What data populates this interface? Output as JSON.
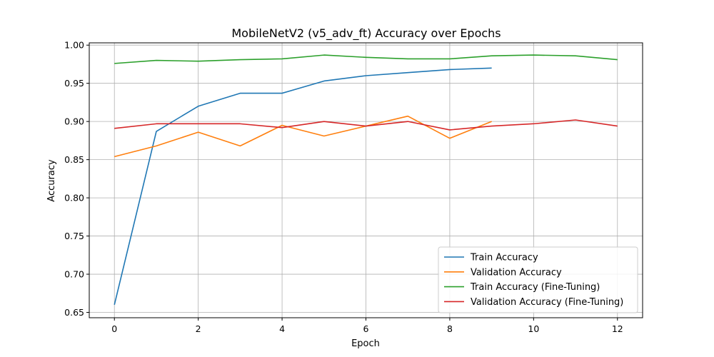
{
  "chart_data": {
    "type": "line",
    "title": "MobileNetV2 (v5_adv_ft) Accuracy over Epochs",
    "xlabel": "Epoch",
    "ylabel": "Accuracy",
    "xlim": [
      -0.6,
      12.6
    ],
    "ylim": [
      0.643,
      1.003
    ],
    "xticks": [
      0,
      2,
      4,
      6,
      8,
      10,
      12
    ],
    "yticks": [
      0.65,
      0.7,
      0.75,
      0.8,
      0.85,
      0.9,
      0.95,
      1.0
    ],
    "xtick_labels": [
      "0",
      "2",
      "4",
      "6",
      "8",
      "10",
      "12"
    ],
    "ytick_labels": [
      "0.65",
      "0.70",
      "0.75",
      "0.80",
      "0.85",
      "0.90",
      "0.95",
      "1.00"
    ],
    "grid": true,
    "legend_position": "bottom-right",
    "series": [
      {
        "name": "Train Accuracy",
        "color": "#1f77b4",
        "x": [
          0,
          1,
          2,
          3,
          4,
          5,
          6,
          7,
          8,
          9
        ],
        "values": [
          0.66,
          0.887,
          0.92,
          0.937,
          0.937,
          0.953,
          0.96,
          0.964,
          0.968,
          0.97
        ]
      },
      {
        "name": "Validation Accuracy",
        "color": "#ff7f0e",
        "x": [
          0,
          1,
          2,
          3,
          4,
          5,
          6,
          7,
          8,
          9
        ],
        "values": [
          0.854,
          0.868,
          0.886,
          0.868,
          0.895,
          0.881,
          0.894,
          0.907,
          0.878,
          0.9
        ]
      },
      {
        "name": "Train Accuracy (Fine-Tuning)",
        "color": "#2ca02c",
        "x": [
          0,
          1,
          2,
          3,
          4,
          5,
          6,
          7,
          8,
          9,
          10,
          11,
          12
        ],
        "values": [
          0.976,
          0.98,
          0.979,
          0.981,
          0.982,
          0.987,
          0.984,
          0.982,
          0.982,
          0.986,
          0.987,
          0.986,
          0.981
        ]
      },
      {
        "name": "Validation Accuracy (Fine-Tuning)",
        "color": "#d62728",
        "x": [
          0,
          1,
          2,
          3,
          4,
          5,
          6,
          7,
          8,
          9,
          10,
          11,
          12
        ],
        "values": [
          0.891,
          0.897,
          0.897,
          0.897,
          0.892,
          0.9,
          0.894,
          0.9,
          0.889,
          0.894,
          0.897,
          0.902,
          0.894
        ]
      }
    ]
  }
}
